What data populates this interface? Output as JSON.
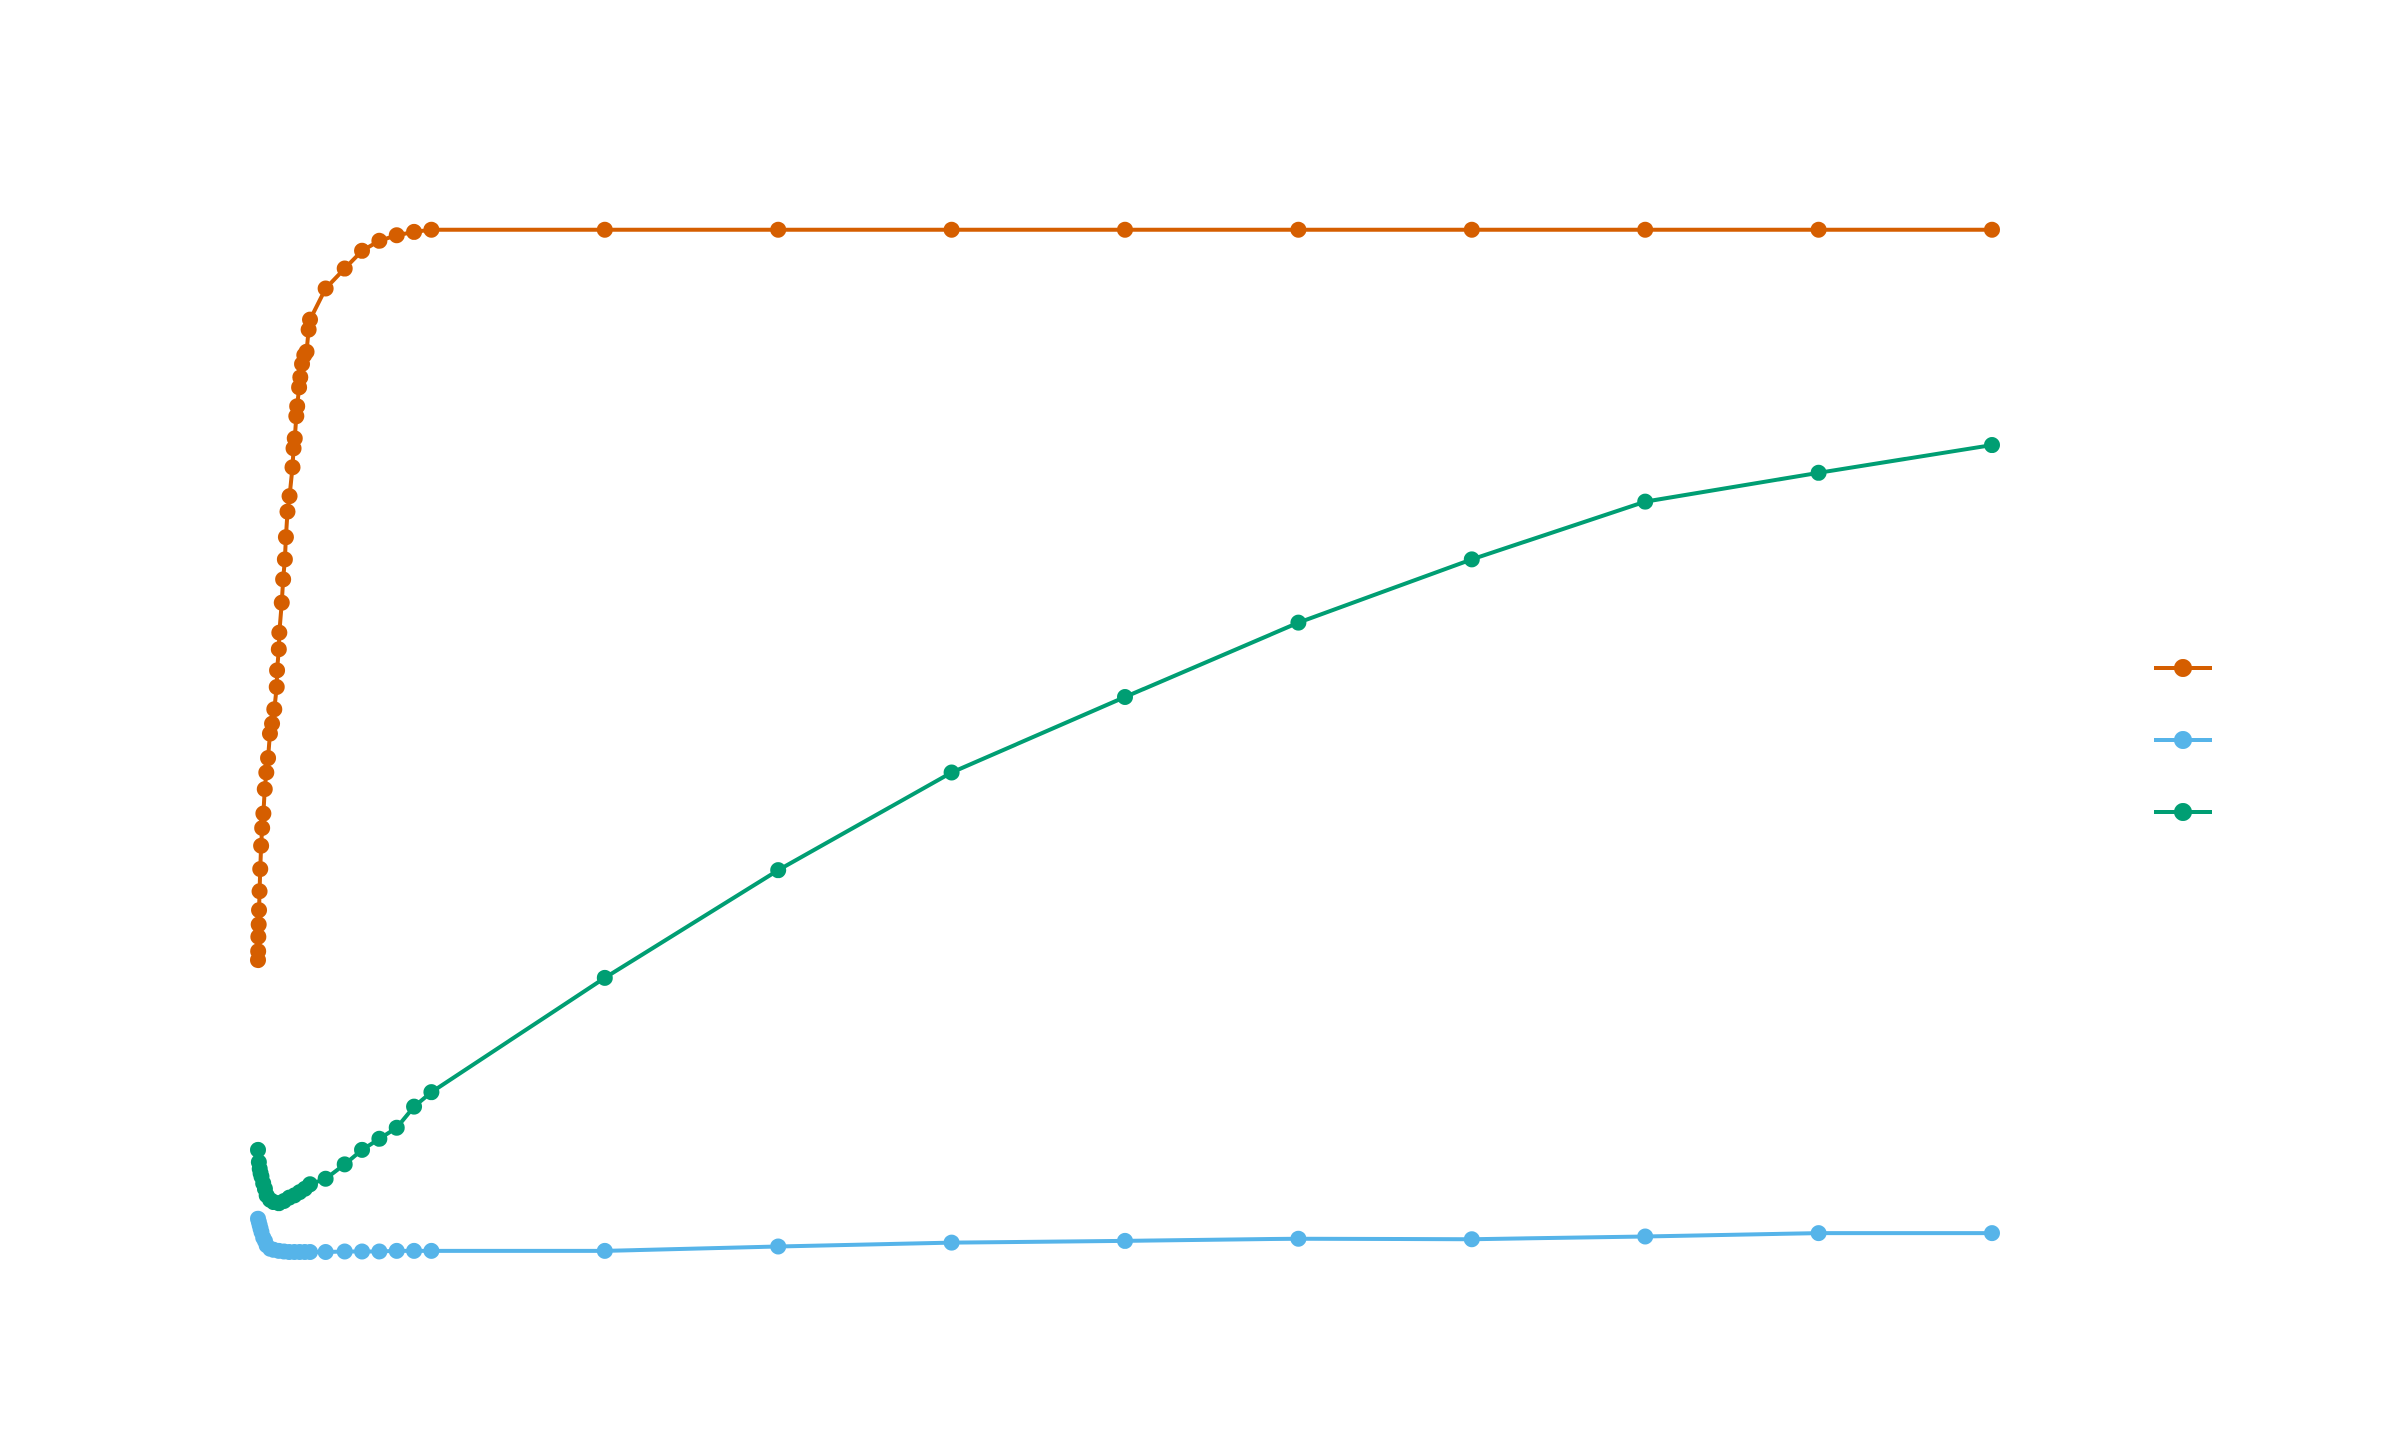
{
  "chart_data": {
    "type": "line",
    "title": "",
    "xlabel": "",
    "ylabel": "",
    "xlim": [
      0,
      100
    ],
    "ylim": [
      0,
      100
    ],
    "grid": false,
    "legend_position": "right",
    "series": [
      {
        "color": "#D55E00",
        "x": [
          0,
          0.01,
          0.02,
          0.04,
          0.06,
          0.09,
          0.13,
          0.18,
          0.24,
          0.31,
          0.39,
          0.48,
          0.58,
          0.69,
          0.81,
          0.94,
          1.08,
          1.1,
          1.2,
          1.23,
          1.37,
          1.45,
          1.55,
          1.61,
          1.7,
          1.82,
          1.99,
          2.05,
          2.12,
          2.21,
          2.26,
          2.37,
          2.44,
          2.54,
          2.67,
          2.8,
          2.92,
          3.0,
          3.9,
          5.0,
          6.0,
          7.0,
          8.0,
          9.0,
          10.0,
          20.0,
          30.0,
          40.0,
          50.0,
          60.0,
          70.0,
          80.0,
          90.0,
          100.0
        ],
        "y": [
          27.2,
          28.0,
          29.3,
          30.4,
          31.7,
          33.4,
          35.4,
          37.5,
          39.1,
          40.4,
          42.6,
          44.1,
          45.4,
          47.6,
          48.5,
          49.8,
          51.8,
          53.3,
          55.2,
          56.7,
          59.4,
          61.5,
          63.3,
          65.3,
          67.6,
          69.0,
          71.6,
          73.3,
          74.2,
          76.2,
          77.1,
          78.8,
          79.7,
          80.9,
          81.7,
          82.0,
          84.0,
          84.9,
          87.7,
          89.5,
          91.1,
          92.0,
          92.5,
          92.8,
          93.0,
          93.0,
          93.0,
          93.0,
          93.0,
          93.0,
          93.0,
          93.0,
          93.0,
          93.0
        ]
      },
      {
        "color": "#56B4E9",
        "x": [
          0,
          0.05,
          0.1,
          0.15,
          0.2,
          0.3,
          0.4,
          0.5,
          0.7,
          0.9,
          1.2,
          1.5,
          1.8,
          2.1,
          2.4,
          2.7,
          3.0,
          3.9,
          5.0,
          6.0,
          7.0,
          8.0,
          9.0,
          10.0,
          20.0,
          30.0,
          40.0,
          50.0,
          60.0,
          70.0,
          80.0,
          90.0,
          100.0
        ],
        "y": [
          3.9,
          3.6,
          3.3,
          3.0,
          2.7,
          2.2,
          1.9,
          1.5,
          1.2,
          1.1,
          1.0,
          0.95,
          0.9,
          0.9,
          0.9,
          0.9,
          0.9,
          0.9,
          0.95,
          0.95,
          0.95,
          1.0,
          1.0,
          1.0,
          1.0,
          1.4,
          1.75,
          1.9,
          2.1,
          2.05,
          2.3,
          2.6,
          2.6
        ]
      },
      {
        "color": "#009E73",
        "x": [
          0,
          0.05,
          0.1,
          0.15,
          0.2,
          0.3,
          0.4,
          0.5,
          0.7,
          0.9,
          1.2,
          1.5,
          1.8,
          2.1,
          2.4,
          2.7,
          3.0,
          3.9,
          5.0,
          6.0,
          7.0,
          8.0,
          9.0,
          10.0,
          20.0,
          30.0,
          40.0,
          50.0,
          60.0,
          70.0,
          80.0,
          90.0,
          100.0
        ],
        "y": [
          10.1,
          9.0,
          8.4,
          8.0,
          7.7,
          7.1,
          6.6,
          6.0,
          5.6,
          5.4,
          5.3,
          5.5,
          5.8,
          6.0,
          6.3,
          6.6,
          7.0,
          7.5,
          8.8,
          10.1,
          11.1,
          12.1,
          14.0,
          15.3,
          25.6,
          35.3,
          44.1,
          50.9,
          57.6,
          63.3,
          68.5,
          71.1,
          73.6
        ]
      }
    ]
  }
}
